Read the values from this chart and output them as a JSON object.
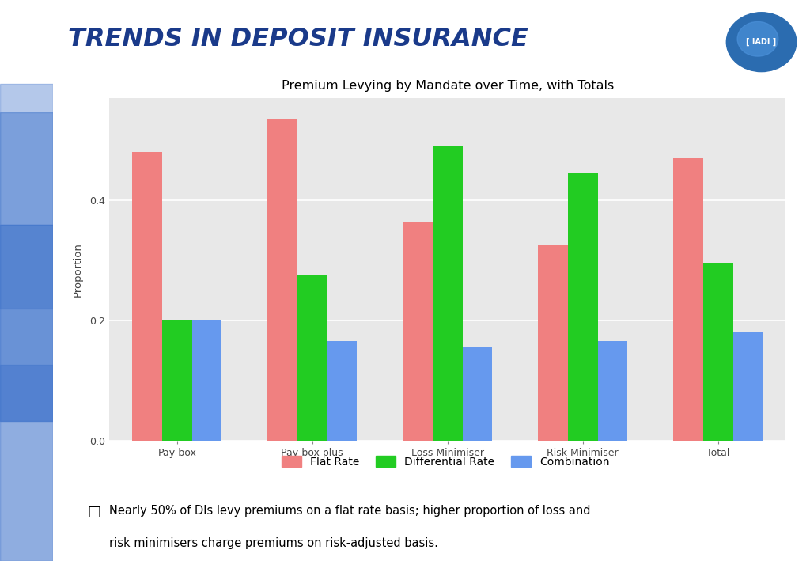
{
  "title": "Premium Levying by Mandate over Time, with Totals",
  "categories": [
    "Pay-box",
    "Pay-box plus",
    "Loss Minimiser",
    "Risk Minimiser",
    "Total"
  ],
  "series": {
    "Flat Rate": [
      0.48,
      0.535,
      0.365,
      0.325,
      0.47
    ],
    "Differential Rate": [
      0.2,
      0.275,
      0.49,
      0.445,
      0.295
    ],
    "Combination": [
      0.2,
      0.165,
      0.155,
      0.165,
      0.18
    ]
  },
  "colors": {
    "Flat Rate": "#F08080",
    "Differential Rate": "#22CC22",
    "Combination": "#6699EE"
  },
  "ylabel": "Proportion",
  "ylim": [
    0,
    0.57
  ],
  "yticks": [
    0.0,
    0.2,
    0.4
  ],
  "chart_bg": "#E8E8E8",
  "header_title": "TRENDS IN DEPOSIT INSURANCE",
  "header_text_color": "#1A3A8A",
  "left_bar_color": "#2255AA",
  "blue_line_color": "#2255AA",
  "annotation_text_line1": "Nearly 50% of DIs levy premiums on a flat rate basis; higher proportion of loss and",
  "annotation_text_line2": "risk minimisers charge premiums on risk-adjusted basis.",
  "fig_width": 10.24,
  "fig_height": 7.09,
  "bar_width": 0.22
}
